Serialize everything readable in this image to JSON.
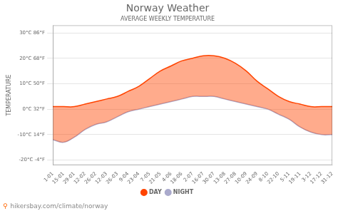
{
  "chart_data": {
    "type": "area",
    "title": "Norway Weather",
    "subtitle": "AVERAGE WEEKLY TEMPERATURE",
    "ylabel": "TEMPERATURE",
    "categories": [
      "1-01",
      "15-01",
      "29-01",
      "12-02",
      "26-02",
      "12-03",
      "26-03",
      "9-04",
      "23-04",
      "7-05",
      "21-05",
      "4-06",
      "18-06",
      "2-07",
      "16-07",
      "30-07",
      "13-08",
      "27-08",
      "10-09",
      "24-09",
      "8-10",
      "22-10",
      "5-11",
      "19-11",
      "3-12",
      "17-12",
      "31-12"
    ],
    "series": [
      {
        "name": "DAY",
        "color": "#ff4400",
        "values": [
          1,
          1,
          1,
          2,
          3,
          4,
          5,
          7,
          9,
          12,
          15,
          17,
          19,
          20,
          21,
          21,
          20,
          18,
          15,
          11,
          8,
          5,
          3,
          2,
          1,
          1,
          1
        ]
      },
      {
        "name": "NIGHT",
        "color": "#aaaacc",
        "values": [
          -12,
          -13,
          -11,
          -8,
          -6,
          -5,
          -3,
          -1,
          0,
          1,
          2,
          3,
          4,
          5,
          5,
          5,
          4,
          3,
          2,
          1,
          0,
          -2,
          -4,
          -7,
          -9,
          -10,
          -10
        ]
      }
    ],
    "ylim": [
      -22,
      33
    ],
    "yticks": [
      {
        "value": -20,
        "label": "-20°C -4°F"
      },
      {
        "value": -10,
        "label": "-10°C 14°F"
      },
      {
        "value": 0,
        "label": "0°C 32°F"
      },
      {
        "value": 10,
        "label": "10°C 50°F"
      },
      {
        "value": 20,
        "label": "20°C 68°F"
      },
      {
        "value": 30,
        "label": "30°C 86°F"
      }
    ],
    "grid": true,
    "legend": "bottom",
    "annotations": [
      "⚲",
      "hikersbay.com/climate/norway"
    ]
  }
}
